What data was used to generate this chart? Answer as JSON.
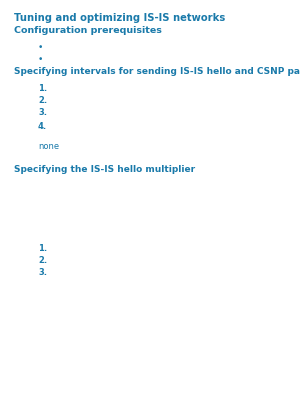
{
  "bg_color": "#ffffff",
  "text_color": "#1a7aaa",
  "title": "Tuning and optimizing IS-IS networks",
  "subtitle": "Configuration prerequisites",
  "bullet1": "•",
  "bullet2": "•",
  "section2_title": "Specifying intervals for sending IS-IS hello and CSNP packets",
  "steps": [
    "1.",
    "2.",
    "3.",
    "4."
  ],
  "note_label": "none",
  "section3_title": "Specifying the IS-IS hello multiplier",
  "steps2": [
    "1.",
    "2.",
    "3."
  ],
  "title_fontsize": 7.2,
  "subtitle_fontsize": 6.8,
  "section_fontsize": 6.5,
  "step_fontsize": 6.0,
  "bullet_fontsize": 6.5
}
